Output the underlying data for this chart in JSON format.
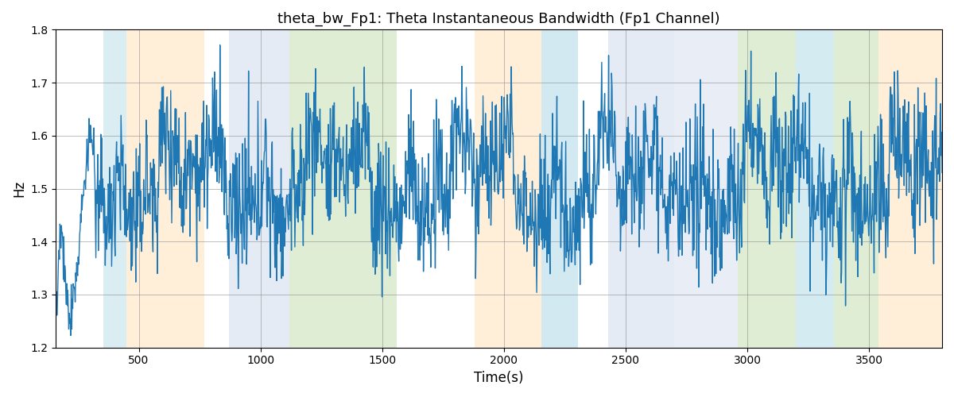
{
  "title": "theta_bw_Fp1: Theta Instantaneous Bandwidth (Fp1 Channel)",
  "xlabel": "Time(s)",
  "ylabel": "Hz",
  "xlim": [
    160,
    3800
  ],
  "ylim": [
    1.2,
    1.8
  ],
  "yticks": [
    1.2,
    1.3,
    1.4,
    1.5,
    1.6,
    1.7,
    1.8
  ],
  "xticks": [
    500,
    1000,
    1500,
    2000,
    2500,
    3000,
    3500
  ],
  "line_color": "#1f77b4",
  "line_width": 1.0,
  "background_color": "#ffffff",
  "bands": [
    {
      "xmin": 355,
      "xmax": 450,
      "color": "#add8e6",
      "alpha": 0.45
    },
    {
      "xmin": 450,
      "xmax": 770,
      "color": "#ffdcaa",
      "alpha": 0.45
    },
    {
      "xmin": 870,
      "xmax": 1120,
      "color": "#ccd9ec",
      "alpha": 0.5
    },
    {
      "xmin": 1120,
      "xmax": 1560,
      "color": "#b8d8a0",
      "alpha": 0.45
    },
    {
      "xmin": 1880,
      "xmax": 2155,
      "color": "#ffdcaa",
      "alpha": 0.45
    },
    {
      "xmin": 2155,
      "xmax": 2305,
      "color": "#add8e6",
      "alpha": 0.55
    },
    {
      "xmin": 2430,
      "xmax": 2700,
      "color": "#ccd9ec",
      "alpha": 0.5
    },
    {
      "xmin": 2700,
      "xmax": 2960,
      "color": "#ccd9ec",
      "alpha": 0.45
    },
    {
      "xmin": 2960,
      "xmax": 3200,
      "color": "#b8d8a0",
      "alpha": 0.45
    },
    {
      "xmin": 3200,
      "xmax": 3355,
      "color": "#add8e6",
      "alpha": 0.5
    },
    {
      "xmin": 3355,
      "xmax": 3540,
      "color": "#b8d8a0",
      "alpha": 0.45
    },
    {
      "xmin": 3540,
      "xmax": 3800,
      "color": "#ffdcaa",
      "alpha": 0.45
    }
  ],
  "seed": 12345,
  "n_points": 1800
}
